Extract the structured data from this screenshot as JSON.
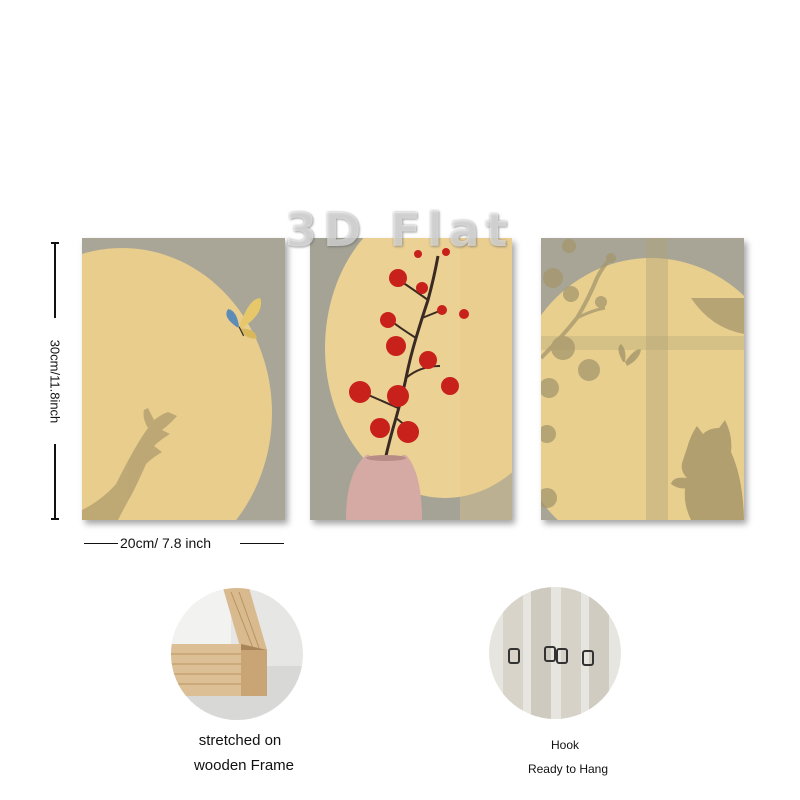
{
  "watermark": "3D Flat",
  "dimensions": {
    "height_label": "30cm/11.8inch",
    "width_label": "20cm/ 7.8 inch"
  },
  "panels": [
    {
      "name": "hand-and-butterfly",
      "shows": [
        "hand-shadow",
        "butterfly"
      ]
    },
    {
      "name": "red-blossom-vase",
      "shows": [
        "plum-blossom-branch",
        "vase"
      ]
    },
    {
      "name": "cat-and-butterfly",
      "shows": [
        "branch-shadow",
        "butterfly-shadow",
        "cat-shadow"
      ]
    }
  ],
  "features": {
    "frame": {
      "line1": "stretched on",
      "line2": "wooden Frame"
    },
    "hook": {
      "line1": "Hook",
      "line2": "Ready to Hang"
    }
  },
  "colors": {
    "wall_yellow": "#e9cf8e",
    "shadow_gray": "#a8a596",
    "blossom_red": "#c8201b",
    "vase_pink": "#d6aaa4",
    "wood": "#d9b98e"
  }
}
